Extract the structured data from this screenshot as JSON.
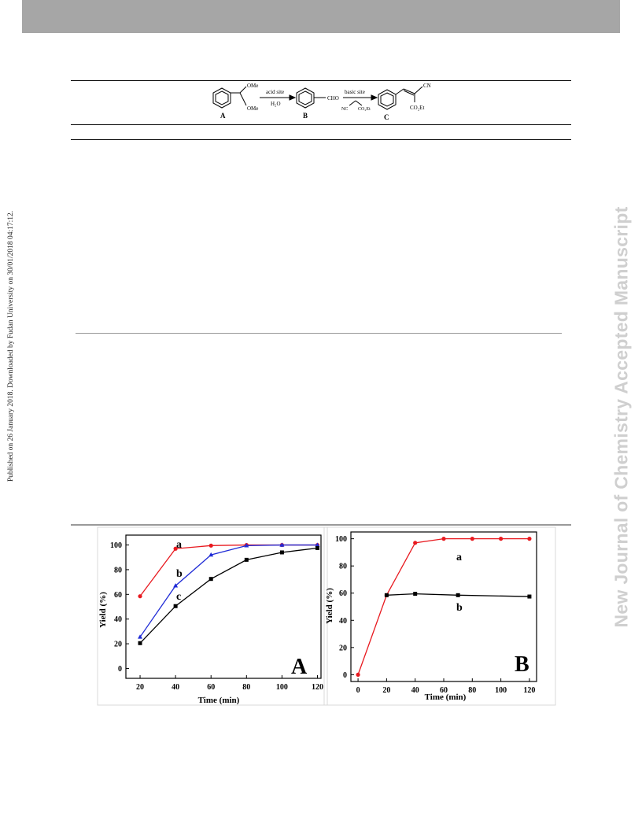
{
  "side_stamp": "Published on 26 January 2018. Downloaded by Fudan University on 30/01/2018 04:17:12.",
  "watermark": "New Journal of Chemistry Accepted Manuscript",
  "scheme": {
    "compound_a_label": "A",
    "compound_b_label": "B",
    "compound_c_label": "C",
    "ome_top": "OMe",
    "ome_bottom": "OMe",
    "arrow1_top": "acid site",
    "arrow1_bottom": "H₂O",
    "cho": "CHO",
    "arrow2_top": "basic site",
    "arrow2_nc": "NC",
    "arrow2_co2et": "CO₂Et",
    "cn": "CN",
    "product_co2et": "CO₂Et"
  },
  "chart_data": [
    {
      "type": "line",
      "panel_label": "A",
      "xlabel": "Time (min)",
      "ylabel": "Yield (%)",
      "xlim": [
        12,
        122
      ],
      "ylim": [
        -8,
        108
      ],
      "xticks": [
        20,
        40,
        60,
        80,
        100,
        120
      ],
      "yticks": [
        0,
        20,
        40,
        60,
        80,
        100
      ],
      "grid": false,
      "series": [
        {
          "name": "a",
          "color": "#e8191f",
          "marker": "circle",
          "x": [
            20,
            40,
            60,
            80,
            100,
            120
          ],
          "y": [
            58.5,
            97,
            99.5,
            100,
            100,
            100
          ]
        },
        {
          "name": "b",
          "color": "#1f2bd6",
          "marker": "triangle",
          "x": [
            20,
            40,
            60,
            80,
            100,
            120
          ],
          "y": [
            25.5,
            67,
            92,
            99.5,
            100,
            100
          ]
        },
        {
          "name": "c",
          "color": "#000000",
          "marker": "square",
          "x": [
            20,
            40,
            60,
            80,
            100,
            120
          ],
          "y": [
            20.5,
            50.5,
            72.5,
            88,
            94,
            97.5
          ]
        }
      ]
    },
    {
      "type": "line",
      "panel_label": "B",
      "xlabel": "Time (min)",
      "ylabel": "Yield (%)",
      "xlim": [
        -5,
        125
      ],
      "ylim": [
        -5,
        105
      ],
      "xticks": [
        0,
        20,
        40,
        60,
        80,
        100,
        120
      ],
      "yticks": [
        0,
        20,
        40,
        60,
        80,
        100
      ],
      "grid": false,
      "series": [
        {
          "name": "a",
          "color": "#e8191f",
          "marker": "circle",
          "x": [
            0,
            20,
            40,
            60,
            80,
            100,
            120
          ],
          "y": [
            0,
            58.5,
            97,
            100,
            100,
            100,
            100
          ]
        },
        {
          "name": "b",
          "color": "#000000",
          "marker": "square",
          "x": [
            20,
            40,
            70,
            120
          ],
          "y": [
            58.5,
            59.5,
            58.5,
            57.5
          ]
        }
      ]
    }
  ]
}
